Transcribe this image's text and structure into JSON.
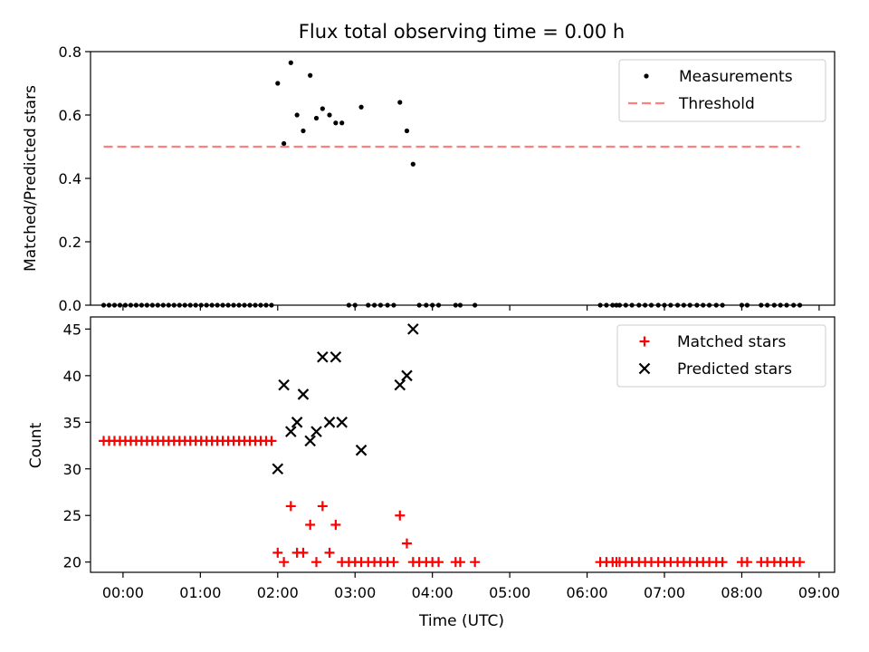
{
  "chart_data": [
    {
      "type": "scatter",
      "title": "Flux total observing time = 0.00 h",
      "ylabel": "Matched/Predicted stars",
      "ylim": [
        0,
        0.8
      ],
      "yticks": [
        0.0,
        0.2,
        0.4,
        0.6,
        0.8
      ],
      "ytick_labels": [
        "0.0",
        "0.2",
        "0.4",
        "0.6",
        "0.8"
      ],
      "xlim": [
        -0.42,
        9.2
      ],
      "legend_position": "top-right",
      "grid": false,
      "series": [
        {
          "name": "Measurements",
          "marker": "dot",
          "color": "#000000",
          "points": [
            [
              -0.25,
              0
            ],
            [
              -0.18,
              0
            ],
            [
              -0.11,
              0
            ],
            [
              -0.04,
              0
            ],
            [
              0.03,
              0
            ],
            [
              0.1,
              0
            ],
            [
              0.17,
              0
            ],
            [
              0.24,
              0
            ],
            [
              0.31,
              0
            ],
            [
              0.38,
              0
            ],
            [
              0.45,
              0
            ],
            [
              0.52,
              0
            ],
            [
              0.59,
              0
            ],
            [
              0.66,
              0
            ],
            [
              0.73,
              0
            ],
            [
              0.8,
              0
            ],
            [
              0.87,
              0
            ],
            [
              0.94,
              0
            ],
            [
              1.01,
              0
            ],
            [
              1.08,
              0
            ],
            [
              1.15,
              0
            ],
            [
              1.22,
              0
            ],
            [
              1.29,
              0
            ],
            [
              1.36,
              0
            ],
            [
              1.43,
              0
            ],
            [
              1.5,
              0
            ],
            [
              1.57,
              0
            ],
            [
              1.64,
              0
            ],
            [
              1.71,
              0
            ],
            [
              1.78,
              0
            ],
            [
              1.85,
              0
            ],
            [
              1.92,
              0
            ],
            [
              2.0,
              0.7
            ],
            [
              2.08,
              0.51
            ],
            [
              2.17,
              0.765
            ],
            [
              2.25,
              0.6
            ],
            [
              2.33,
              0.55
            ],
            [
              2.42,
              0.725
            ],
            [
              2.5,
              0.59
            ],
            [
              2.58,
              0.62
            ],
            [
              2.67,
              0.6
            ],
            [
              2.75,
              0.575
            ],
            [
              2.83,
              0.575
            ],
            [
              3.08,
              0.625
            ],
            [
              3.58,
              0.64
            ],
            [
              3.67,
              0.55
            ],
            [
              3.75,
              0.445
            ],
            [
              2.92,
              0
            ],
            [
              3.0,
              0
            ],
            [
              3.17,
              0
            ],
            [
              3.25,
              0
            ],
            [
              3.33,
              0
            ],
            [
              3.42,
              0
            ],
            [
              3.5,
              0
            ],
            [
              3.83,
              0
            ],
            [
              3.92,
              0
            ],
            [
              4.0,
              0
            ],
            [
              4.08,
              0
            ],
            [
              4.3,
              0
            ],
            [
              4.36,
              0
            ],
            [
              4.55,
              0
            ],
            [
              6.17,
              0
            ],
            [
              6.25,
              0
            ],
            [
              6.33,
              0
            ],
            [
              6.38,
              0
            ],
            [
              6.42,
              0
            ],
            [
              6.5,
              0
            ],
            [
              6.58,
              0
            ],
            [
              6.67,
              0
            ],
            [
              6.75,
              0
            ],
            [
              6.83,
              0
            ],
            [
              6.92,
              0
            ],
            [
              7.0,
              0
            ],
            [
              7.08,
              0
            ],
            [
              7.17,
              0
            ],
            [
              7.25,
              0
            ],
            [
              7.33,
              0
            ],
            [
              7.42,
              0
            ],
            [
              7.5,
              0
            ],
            [
              7.58,
              0
            ],
            [
              7.67,
              0
            ],
            [
              7.75,
              0
            ],
            [
              8.0,
              0
            ],
            [
              8.07,
              0
            ],
            [
              8.25,
              0
            ],
            [
              8.33,
              0
            ],
            [
              8.42,
              0
            ],
            [
              8.5,
              0
            ],
            [
              8.58,
              0
            ],
            [
              8.67,
              0
            ],
            [
              8.75,
              0
            ]
          ]
        },
        {
          "name": "Threshold",
          "marker": "dashed-line",
          "color": "#ff7f7f",
          "x": [
            -0.25,
            8.75
          ],
          "values": [
            0.5,
            0.5
          ]
        }
      ]
    },
    {
      "type": "scatter",
      "xlabel": "Time (UTC)",
      "ylabel": "Count",
      "ylim": [
        18.9,
        46.3
      ],
      "yticks": [
        20,
        25,
        30,
        35,
        40,
        45
      ],
      "ytick_labels": [
        "20",
        "25",
        "30",
        "35",
        "40",
        "45"
      ],
      "xlim": [
        -0.42,
        9.2
      ],
      "xticks": [
        0,
        1,
        2,
        3,
        4,
        5,
        6,
        7,
        8,
        9
      ],
      "xtick_labels": [
        "00:00",
        "01:00",
        "02:00",
        "03:00",
        "04:00",
        "05:00",
        "06:00",
        "07:00",
        "08:00",
        "09:00"
      ],
      "legend_position": "top-right",
      "grid": false,
      "series": [
        {
          "name": "Matched stars",
          "marker": "plus",
          "color": "#ff0000",
          "points": [
            [
              -0.25,
              33
            ],
            [
              -0.18,
              33
            ],
            [
              -0.11,
              33
            ],
            [
              -0.04,
              33
            ],
            [
              0.03,
              33
            ],
            [
              0.1,
              33
            ],
            [
              0.17,
              33
            ],
            [
              0.24,
              33
            ],
            [
              0.31,
              33
            ],
            [
              0.38,
              33
            ],
            [
              0.45,
              33
            ],
            [
              0.52,
              33
            ],
            [
              0.59,
              33
            ],
            [
              0.66,
              33
            ],
            [
              0.73,
              33
            ],
            [
              0.8,
              33
            ],
            [
              0.87,
              33
            ],
            [
              0.94,
              33
            ],
            [
              1.01,
              33
            ],
            [
              1.08,
              33
            ],
            [
              1.15,
              33
            ],
            [
              1.22,
              33
            ],
            [
              1.29,
              33
            ],
            [
              1.36,
              33
            ],
            [
              1.43,
              33
            ],
            [
              1.5,
              33
            ],
            [
              1.57,
              33
            ],
            [
              1.64,
              33
            ],
            [
              1.71,
              33
            ],
            [
              1.78,
              33
            ],
            [
              1.85,
              33
            ],
            [
              1.92,
              33
            ],
            [
              2.0,
              21
            ],
            [
              2.08,
              20
            ],
            [
              2.17,
              26
            ],
            [
              2.25,
              21
            ],
            [
              2.33,
              21
            ],
            [
              2.42,
              24
            ],
            [
              2.5,
              20
            ],
            [
              2.58,
              26
            ],
            [
              2.67,
              21
            ],
            [
              2.75,
              24
            ],
            [
              2.83,
              20
            ],
            [
              2.92,
              20
            ],
            [
              3.0,
              20
            ],
            [
              3.08,
              20
            ],
            [
              3.17,
              20
            ],
            [
              3.25,
              20
            ],
            [
              3.33,
              20
            ],
            [
              3.42,
              20
            ],
            [
              3.5,
              20
            ],
            [
              3.58,
              25
            ],
            [
              3.67,
              22
            ],
            [
              3.75,
              20
            ],
            [
              3.83,
              20
            ],
            [
              3.92,
              20
            ],
            [
              4.0,
              20
            ],
            [
              4.08,
              20
            ],
            [
              4.3,
              20
            ],
            [
              4.36,
              20
            ],
            [
              4.55,
              20
            ],
            [
              6.17,
              20
            ],
            [
              6.25,
              20
            ],
            [
              6.33,
              20
            ],
            [
              6.38,
              20
            ],
            [
              6.42,
              20
            ],
            [
              6.5,
              20
            ],
            [
              6.58,
              20
            ],
            [
              6.67,
              20
            ],
            [
              6.75,
              20
            ],
            [
              6.83,
              20
            ],
            [
              6.92,
              20
            ],
            [
              7.0,
              20
            ],
            [
              7.08,
              20
            ],
            [
              7.17,
              20
            ],
            [
              7.25,
              20
            ],
            [
              7.33,
              20
            ],
            [
              7.42,
              20
            ],
            [
              7.5,
              20
            ],
            [
              7.58,
              20
            ],
            [
              7.67,
              20
            ],
            [
              7.75,
              20
            ],
            [
              8.0,
              20
            ],
            [
              8.07,
              20
            ],
            [
              8.25,
              20
            ],
            [
              8.33,
              20
            ],
            [
              8.42,
              20
            ],
            [
              8.5,
              20
            ],
            [
              8.58,
              20
            ],
            [
              8.67,
              20
            ],
            [
              8.75,
              20
            ]
          ]
        },
        {
          "name": "Predicted stars",
          "marker": "x",
          "color": "#000000",
          "points": [
            [
              2.0,
              30
            ],
            [
              2.08,
              39
            ],
            [
              2.17,
              34
            ],
            [
              2.25,
              35
            ],
            [
              2.33,
              38
            ],
            [
              2.42,
              33
            ],
            [
              2.5,
              34
            ],
            [
              2.58,
              42
            ],
            [
              2.67,
              35
            ],
            [
              2.75,
              42
            ],
            [
              2.83,
              35
            ],
            [
              3.08,
              32
            ],
            [
              3.58,
              39
            ],
            [
              3.67,
              40
            ],
            [
              3.75,
              45
            ]
          ]
        }
      ]
    }
  ]
}
